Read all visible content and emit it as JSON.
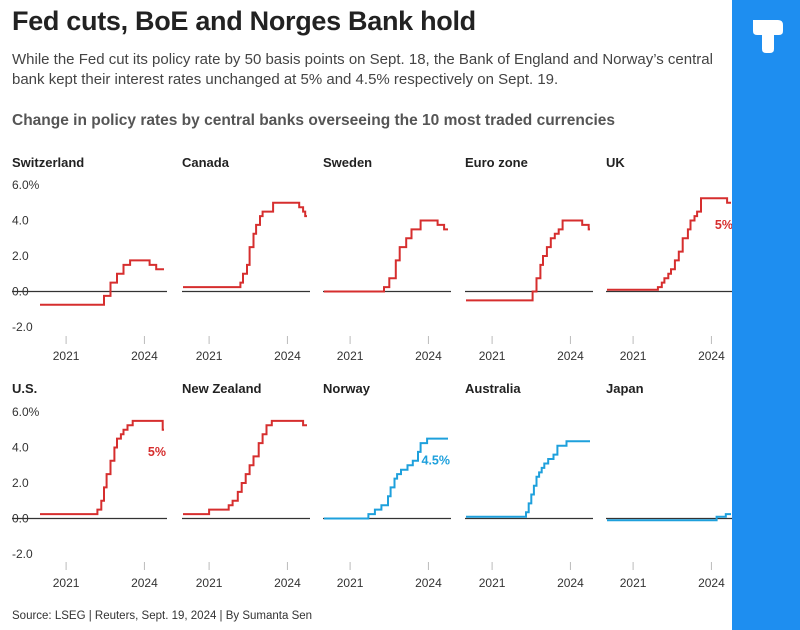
{
  "header": {
    "headline": "Fed cuts, BoE and Norges Bank hold",
    "subhead": "While the Fed cut its policy rate by 50 basis points on Sept. 18, the Bank of England and Norway’s central bank kept their interest rates unchanged at 5% and 4.5% respectively on Sept. 19.",
    "chart_title": "Change in policy rates by central banks overseeing the 10 most traded currencies"
  },
  "footer": {
    "source": "Source: LSEG | Reuters, Sept. 19, 2024 | By Sumanta Sen"
  },
  "colors": {
    "red": "#d62e2e",
    "blue": "#1ea0dc",
    "brand_bar": "#1e8ef0",
    "zero_line": "#333333",
    "tick_line": "#bbbbbb"
  },
  "icons": {
    "logo": "reuters-logo-icon"
  },
  "chart_data": {
    "type": "line",
    "title": "Change in policy rates by central banks overseeing the 10 most traded currencies",
    "y_tick_labels": [
      "6.0%",
      "4.0",
      "2.0",
      "0.0",
      "-2.0"
    ],
    "y_ticks": [
      6,
      4,
      2,
      0,
      -2
    ],
    "ylim": [
      -2,
      6
    ],
    "xlim": [
      2020.0,
      2024.75
    ],
    "x_tick_labels": [
      "2021",
      "2024"
    ],
    "x_ticks": [
      2021,
      2024
    ],
    "step": true,
    "panels": [
      {
        "name": "Switzerland",
        "color": "red",
        "x": [
          2020.0,
          2022.45,
          2022.7,
          2022.95,
          2023.2,
          2023.45,
          2024.2,
          2024.45
        ],
        "y": [
          -0.75,
          -0.25,
          0.5,
          1.0,
          1.5,
          1.75,
          1.5,
          1.25
        ]
      },
      {
        "name": "Canada",
        "color": "red",
        "x": [
          2020.0,
          2022.2,
          2022.3,
          2022.45,
          2022.55,
          2022.7,
          2022.8,
          2022.95,
          2023.05,
          2023.45,
          2024.45,
          2024.6,
          2024.68
        ],
        "y": [
          0.25,
          0.5,
          1.0,
          1.5,
          2.5,
          3.25,
          3.75,
          4.25,
          4.5,
          5.0,
          4.75,
          4.5,
          4.25
        ]
      },
      {
        "name": "Sweden",
        "color": "red",
        "x": [
          2020.0,
          2022.3,
          2022.5,
          2022.75,
          2022.9,
          2023.15,
          2023.35,
          2023.7,
          2024.35,
          2024.6
        ],
        "y": [
          0.0,
          0.25,
          0.75,
          1.75,
          2.5,
          3.0,
          3.5,
          4.0,
          3.75,
          3.5
        ]
      },
      {
        "name": "Euro zone",
        "color": "red",
        "x": [
          2020.0,
          2022.55,
          2022.7,
          2022.85,
          2022.95,
          2023.1,
          2023.25,
          2023.4,
          2023.55,
          2023.7,
          2024.45,
          2024.7
        ],
        "y": [
          -0.5,
          0.0,
          0.75,
          1.5,
          2.0,
          2.5,
          3.0,
          3.25,
          3.5,
          4.0,
          3.75,
          3.5
        ]
      },
      {
        "name": "UK",
        "color": "red",
        "label": "5%",
        "x": [
          2020.0,
          2021.95,
          2022.1,
          2022.2,
          2022.35,
          2022.45,
          2022.6,
          2022.75,
          2022.9,
          2023.1,
          2023.2,
          2023.35,
          2023.45,
          2023.6,
          2024.6
        ],
        "y": [
          0.1,
          0.25,
          0.5,
          0.75,
          1.0,
          1.25,
          1.75,
          2.25,
          3.0,
          3.5,
          4.0,
          4.25,
          4.5,
          5.25,
          5.0
        ]
      },
      {
        "name": "U.S.",
        "color": "red",
        "label": "5%",
        "x": [
          2020.0,
          2022.2,
          2022.35,
          2022.45,
          2022.55,
          2022.7,
          2022.85,
          2022.95,
          2023.1,
          2023.2,
          2023.35,
          2023.55,
          2024.7
        ],
        "y": [
          0.25,
          0.5,
          1.0,
          1.75,
          2.5,
          3.25,
          4.0,
          4.5,
          4.75,
          5.0,
          5.25,
          5.5,
          5.0
        ]
      },
      {
        "name": "New Zealand",
        "color": "red",
        "x": [
          2020.0,
          2021.0,
          2021.75,
          2021.9,
          2022.1,
          2022.25,
          2022.4,
          2022.55,
          2022.7,
          2022.9,
          2023.05,
          2023.2,
          2023.4,
          2024.6
        ],
        "y": [
          0.25,
          0.5,
          0.75,
          1.0,
          1.5,
          2.0,
          2.5,
          3.0,
          3.5,
          4.25,
          4.75,
          5.25,
          5.5,
          5.25
        ]
      },
      {
        "name": "Norway",
        "color": "blue",
        "label": "4.5%",
        "x": [
          2020.0,
          2021.7,
          2021.95,
          2022.2,
          2022.45,
          2022.55,
          2022.7,
          2022.8,
          2022.95,
          2023.2,
          2023.4,
          2023.6,
          2023.7,
          2023.95
        ],
        "y": [
          0.0,
          0.25,
          0.5,
          0.75,
          1.25,
          1.75,
          2.25,
          2.5,
          2.75,
          3.0,
          3.25,
          3.75,
          4.25,
          4.5
        ]
      },
      {
        "name": "Australia",
        "color": "blue",
        "x": [
          2020.0,
          2022.3,
          2022.4,
          2022.5,
          2022.6,
          2022.7,
          2022.8,
          2022.9,
          2023.0,
          2023.15,
          2023.35,
          2023.5,
          2023.85
        ],
        "y": [
          0.1,
          0.35,
          0.85,
          1.35,
          1.85,
          2.35,
          2.6,
          2.85,
          3.1,
          3.35,
          3.6,
          4.1,
          4.35
        ]
      },
      {
        "name": "Japan",
        "color": "blue",
        "x": [
          2020.0,
          2024.2,
          2024.55
        ],
        "y": [
          -0.1,
          0.1,
          0.25
        ]
      }
    ]
  }
}
